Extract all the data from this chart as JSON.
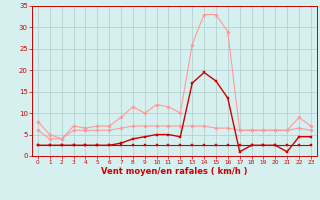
{
  "x": [
    0,
    1,
    2,
    3,
    4,
    5,
    6,
    7,
    8,
    9,
    10,
    11,
    12,
    13,
    14,
    15,
    16,
    17,
    18,
    19,
    20,
    21,
    22,
    23
  ],
  "series": [
    {
      "name": "rafales_light",
      "color": "#FF9999",
      "linewidth": 0.8,
      "marker": "D",
      "markersize": 1.8,
      "y": [
        8,
        5,
        4,
        7,
        6.5,
        7,
        7,
        9,
        11.5,
        10,
        12,
        11.5,
        10,
        26,
        33,
        33,
        29,
        6,
        6,
        6,
        6,
        6,
        9,
        7
      ]
    },
    {
      "name": "moyen_light",
      "color": "#FF9999",
      "linewidth": 0.8,
      "marker": "D",
      "markersize": 1.8,
      "y": [
        6,
        4,
        4,
        6,
        6,
        6,
        6,
        6.5,
        7,
        7,
        7,
        7,
        7,
        7,
        7,
        6.5,
        6.5,
        6,
        6,
        6,
        6,
        6,
        6.5,
        6
      ]
    },
    {
      "name": "rafales_dark",
      "color": "#CC0000",
      "linewidth": 1.0,
      "marker": "s",
      "markersize": 1.8,
      "y": [
        2.5,
        2.5,
        2.5,
        2.5,
        2.5,
        2.5,
        2.5,
        3,
        4,
        4.5,
        5,
        5,
        4.5,
        17,
        19.5,
        17.5,
        13.5,
        1,
        2.5,
        2.5,
        2.5,
        1,
        4.5,
        4.5
      ]
    },
    {
      "name": "moyen_dark",
      "color": "#CC0000",
      "linewidth": 0.8,
      "marker": "s",
      "markersize": 1.8,
      "y": [
        2.5,
        2.5,
        2.5,
        2.5,
        2.5,
        2.5,
        2.5,
        2.5,
        2.5,
        2.5,
        2.5,
        2.5,
        2.5,
        2.5,
        2.5,
        2.5,
        2.5,
        2.5,
        2.5,
        2.5,
        2.5,
        2.5,
        2.5,
        2.5
      ]
    }
  ],
  "xlabel": "Vent moyen/en rafales ( km/h )",
  "xlim": [
    -0.5,
    23.5
  ],
  "ylim": [
    0,
    35
  ],
  "yticks": [
    0,
    5,
    10,
    15,
    20,
    25,
    30,
    35
  ],
  "xticks": [
    0,
    1,
    2,
    3,
    4,
    5,
    6,
    7,
    8,
    9,
    10,
    11,
    12,
    13,
    14,
    15,
    16,
    17,
    18,
    19,
    20,
    21,
    22,
    23
  ],
  "bg_color": "#d6f0ef",
  "grid_color": "#b8d0d0",
  "tick_color": "#cc0000",
  "label_color": "#cc0000",
  "spine_color": "#cc0000",
  "xlabel_fontsize": 6.0,
  "xlabel_fontweight": "bold",
  "ytick_fontsize": 5.0,
  "xtick_fontsize": 4.2
}
